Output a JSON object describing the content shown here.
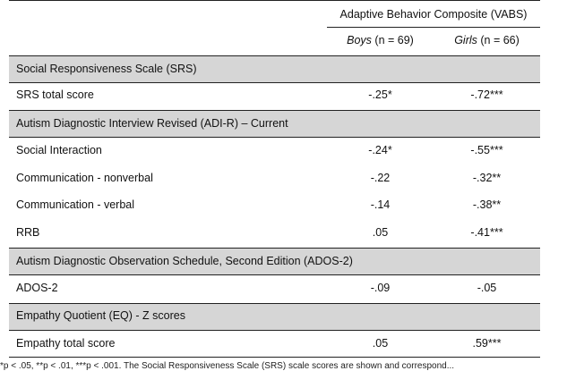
{
  "header": {
    "group_label": "Adaptive Behavior Composite (VABS)",
    "boys_label": "Boys",
    "boys_n": " (n = 69)",
    "girls_label": "Girls",
    "girls_n": " (n = 66)"
  },
  "sections": [
    {
      "title": "Social Responsiveness Scale (SRS)",
      "rows": [
        {
          "label": "SRS total score",
          "boys": "-.25*",
          "girls": "-.72***"
        }
      ]
    },
    {
      "title": "Autism Diagnostic Interview Revised (ADI-R) – Current",
      "rows": [
        {
          "label": "Social Interaction",
          "boys": "-.24*",
          "girls": "-.55***"
        },
        {
          "label": "Communication - nonverbal",
          "boys": "-.22",
          "girls": "-.32**"
        },
        {
          "label": "Communication - verbal",
          "boys": "-.14",
          "girls": "-.38**"
        },
        {
          "label": "RRB",
          "boys": ".05",
          "girls": "-.41***"
        }
      ]
    },
    {
      "title": "Autism Diagnostic Observation Schedule, Second Edition (ADOS-2)",
      "rows": [
        {
          "label": "ADOS-2",
          "boys": "-.09",
          "girls": "-.05"
        }
      ]
    },
    {
      "title": "Empathy Quotient (EQ) - Z scores",
      "rows": [
        {
          "label": "Empathy total score",
          "boys": ".05",
          "girls": ".59***"
        }
      ]
    }
  ],
  "footnote": "*p < .05, **p < .01, ***p < .001. The Social Responsiveness Scale (SRS) scale scores are shown and correspond..."
}
